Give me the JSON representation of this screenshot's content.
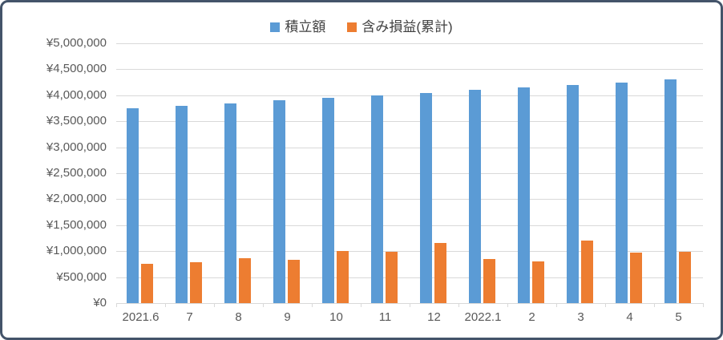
{
  "colors": {
    "frame_border": "#44546A",
    "gridline": "#D9D9D9",
    "axis_text": "#595959",
    "legend_text": "#404040",
    "series_blue": "#5B9BD5",
    "series_orange": "#ED7D31",
    "background": "#FFFFFF"
  },
  "chart_data": {
    "type": "bar",
    "title": "",
    "xlabel": "",
    "ylabel": "",
    "grid": true,
    "legend_position": "top",
    "ylim": [
      0,
      5000000
    ],
    "ytick_step": 500000,
    "ytick_labels": [
      "¥0",
      "¥500,000",
      "¥1,000,000",
      "¥1,500,000",
      "¥2,000,000",
      "¥2,500,000",
      "¥3,000,000",
      "¥3,500,000",
      "¥4,000,000",
      "¥4,500,000",
      "¥5,000,000"
    ],
    "categories": [
      "2021.6",
      "7",
      "8",
      "9",
      "10",
      "11",
      "12",
      "2022.1",
      "2",
      "3",
      "4",
      "5"
    ],
    "series": [
      {
        "key": "tsumitate",
        "name": "積立額",
        "color": "#5B9BD5",
        "values": [
          3750000,
          3800000,
          3850000,
          3900000,
          3950000,
          4000000,
          4050000,
          4100000,
          4150000,
          4200000,
          4250000,
          4300000
        ]
      },
      {
        "key": "unrealized-gain",
        "name": "含み損益(累計)",
        "color": "#ED7D31",
        "values": [
          750000,
          785000,
          860000,
          830000,
          1010000,
          990000,
          1150000,
          850000,
          810000,
          1200000,
          975000,
          980000
        ]
      }
    ]
  }
}
